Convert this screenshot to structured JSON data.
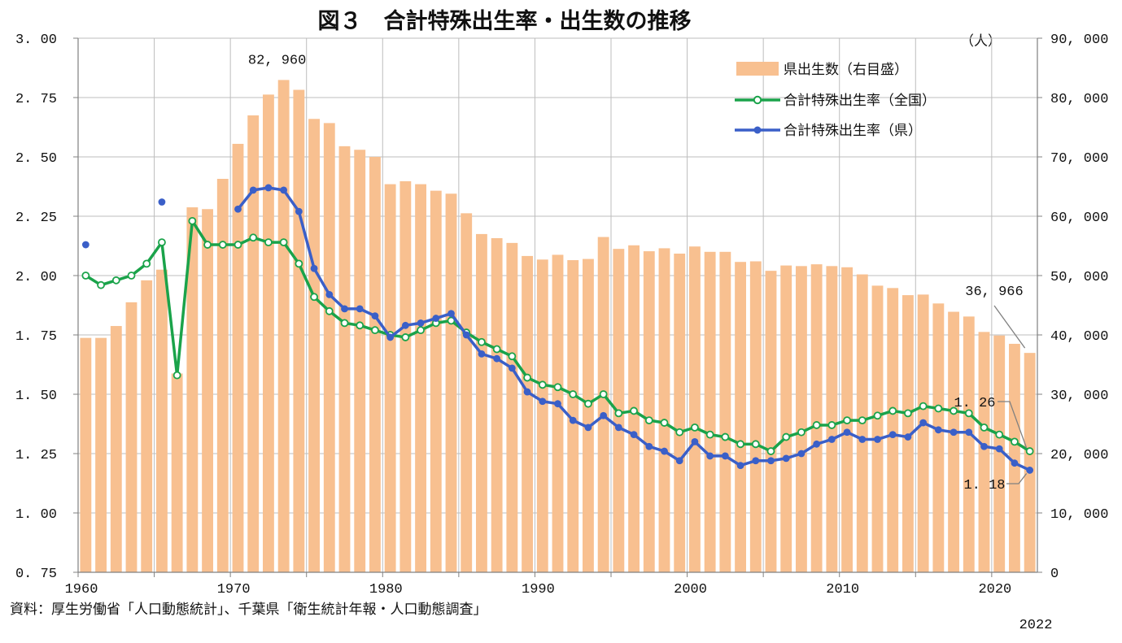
{
  "chart_data": {
    "type": "bar+line",
    "title": "図３　合計特殊出生率・出生数の推移",
    "right_axis_unit": "（人）",
    "years": [
      1960,
      1961,
      1962,
      1963,
      1964,
      1965,
      1966,
      1967,
      1968,
      1969,
      1970,
      1971,
      1972,
      1973,
      1974,
      1975,
      1976,
      1977,
      1978,
      1979,
      1980,
      1981,
      1982,
      1983,
      1984,
      1985,
      1986,
      1987,
      1988,
      1989,
      1990,
      1991,
      1992,
      1993,
      1994,
      1995,
      1996,
      1997,
      1998,
      1999,
      2000,
      2001,
      2002,
      2003,
      2004,
      2005,
      2006,
      2007,
      2008,
      2009,
      2010,
      2011,
      2012,
      2013,
      2014,
      2015,
      2016,
      2017,
      2018,
      2019,
      2020,
      2021,
      2022
    ],
    "x_tick_labels": [
      "1960",
      "1970",
      "1980",
      "1990",
      "2000",
      "2010",
      "2020"
    ],
    "x_extra_label": "2022",
    "y_left": {
      "min": 0.75,
      "max": 3.0,
      "ticks": [
        "3. 00",
        "2. 75",
        "2. 50",
        "2. 25",
        "2. 00",
        "1. 75",
        "1. 50",
        "1. 25",
        "1. 00",
        "0. 75"
      ]
    },
    "y_right": {
      "min": 0,
      "max": 90000,
      "ticks": [
        "90, 000",
        "80, 000",
        "70, 000",
        "60, 000",
        "50, 000",
        "40, 000",
        "30, 000",
        "20, 000",
        "10, 000",
        "0"
      ]
    },
    "series": [
      {
        "name": "県出生数（右目盛）",
        "kind": "bar",
        "axis": "right",
        "color": "#F8C090",
        "values": [
          39500,
          39500,
          41500,
          45500,
          49200,
          51000,
          33500,
          61500,
          61200,
          66300,
          72200,
          77000,
          80500,
          82960,
          81300,
          76400,
          75700,
          71800,
          71200,
          70000,
          65400,
          65900,
          65400,
          64300,
          63800,
          60500,
          57000,
          56300,
          55500,
          53300,
          52700,
          53500,
          52600,
          52800,
          56500,
          54500,
          55100,
          54100,
          54600,
          53700,
          54900,
          54000,
          54000,
          52300,
          52400,
          50800,
          51700,
          51600,
          51900,
          51600,
          51400,
          50200,
          48300,
          47900,
          46700,
          46800,
          45300,
          43900,
          43100,
          40500,
          39900,
          38500,
          36966
        ]
      },
      {
        "name": "合計特殊出生率（全国）",
        "kind": "line",
        "axis": "left",
        "color": "#1AA34A",
        "marker": "open-circle",
        "values": [
          2.0,
          1.96,
          1.98,
          2.0,
          2.05,
          2.14,
          1.58,
          2.23,
          2.13,
          2.13,
          2.13,
          2.16,
          2.14,
          2.14,
          2.05,
          1.91,
          1.85,
          1.8,
          1.79,
          1.77,
          1.75,
          1.74,
          1.77,
          1.8,
          1.81,
          1.76,
          1.72,
          1.69,
          1.66,
          1.57,
          1.54,
          1.53,
          1.5,
          1.46,
          1.5,
          1.42,
          1.43,
          1.39,
          1.38,
          1.34,
          1.36,
          1.33,
          1.32,
          1.29,
          1.29,
          1.26,
          1.32,
          1.34,
          1.37,
          1.37,
          1.39,
          1.39,
          1.41,
          1.43,
          1.42,
          1.45,
          1.44,
          1.43,
          1.42,
          1.36,
          1.33,
          1.3,
          1.26
        ]
      },
      {
        "name": "合計特殊出生率（県）",
        "kind": "line",
        "axis": "left",
        "color": "#3A5FC8",
        "marker": "filled-circle",
        "values": [
          2.13,
          null,
          null,
          null,
          null,
          2.31,
          null,
          null,
          null,
          null,
          2.28,
          2.36,
          2.37,
          2.36,
          2.27,
          2.03,
          1.92,
          1.86,
          1.86,
          1.83,
          1.74,
          1.79,
          1.8,
          1.82,
          1.84,
          1.75,
          1.67,
          1.65,
          1.61,
          1.51,
          1.47,
          1.46,
          1.39,
          1.36,
          1.41,
          1.36,
          1.33,
          1.28,
          1.26,
          1.22,
          1.3,
          1.24,
          1.24,
          1.2,
          1.22,
          1.22,
          1.23,
          1.25,
          1.29,
          1.31,
          1.34,
          1.31,
          1.31,
          1.33,
          1.32,
          1.38,
          1.35,
          1.34,
          1.34,
          1.28,
          1.27,
          1.21,
          1.18
        ]
      }
    ],
    "annotations": [
      {
        "text": "82, 960",
        "year": 1973,
        "value": 82960
      },
      {
        "text": "36, 966",
        "year": 2022,
        "value": 36966
      },
      {
        "text": "1. 26",
        "year": 2022,
        "value": 1.26
      },
      {
        "text": "1. 18",
        "year": 2022,
        "value": 1.18
      }
    ],
    "legend_position": "top-right",
    "grid": true
  },
  "source_text": "資料：厚生労働省「人口動態統計」、千葉県「衛生統計年報・人口動態調査」"
}
